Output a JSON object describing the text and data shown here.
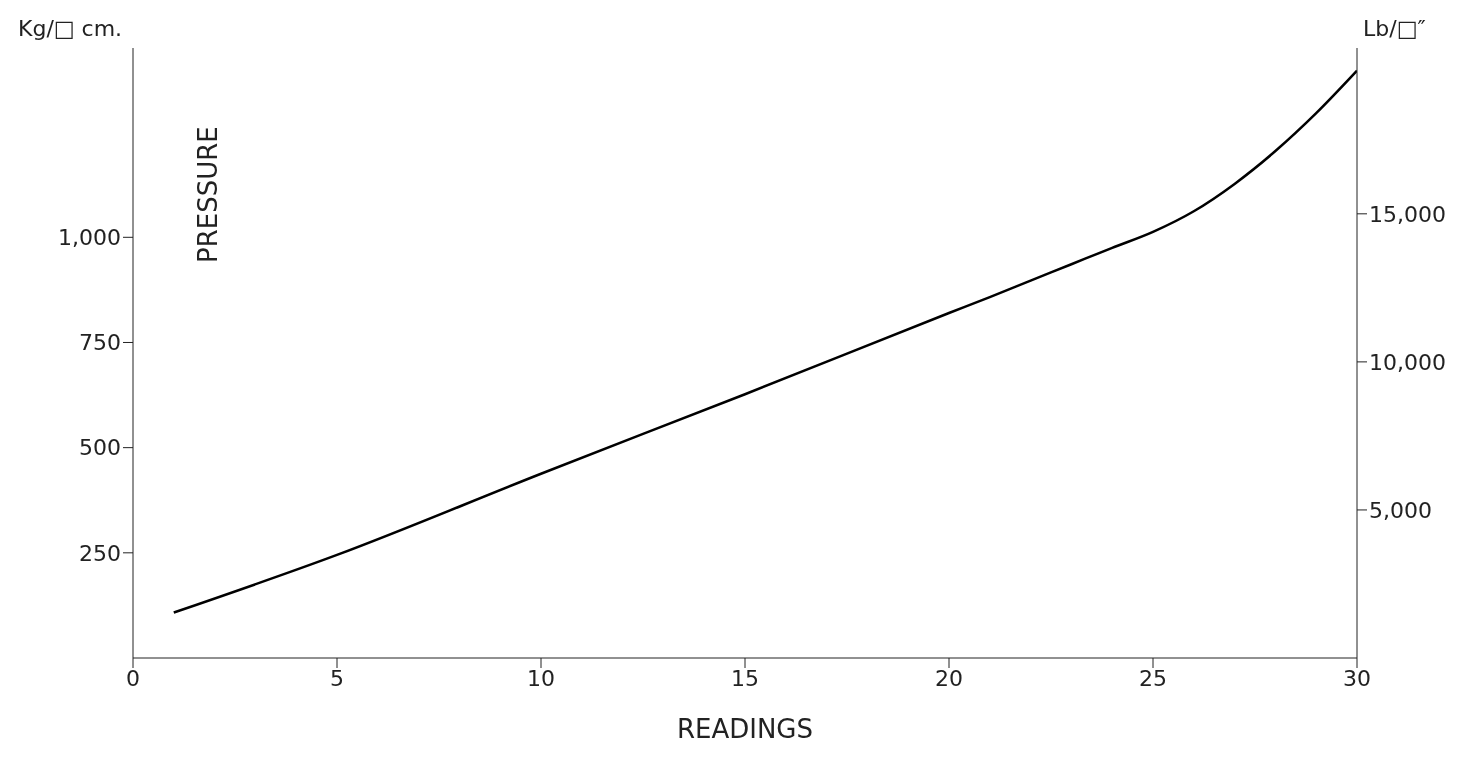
{
  "chart_data": {
    "type": "line",
    "xlabel": "READINGS",
    "ylabel": "Kg/□ cm.",
    "y2label": "Lb/□″",
    "annotations": [
      "PRESSURE"
    ],
    "x": [
      1,
      5,
      10,
      15,
      20,
      21,
      22,
      23,
      24,
      25,
      26,
      27,
      28,
      29,
      30
    ],
    "series": [
      {
        "color": "#000000",
        "values": [
          108,
          245,
          438,
          627,
          820,
          858,
          897,
          936,
          975,
          1013,
          1062,
          1127,
          1205,
          1295,
          1396
        ]
      }
    ],
    "xlim": [
      0,
      30
    ],
    "xticks": [
      0,
      5,
      10,
      15,
      20,
      25,
      30
    ],
    "ylim": [
      0,
      1450
    ],
    "yticks": [
      250,
      500,
      750,
      {
        "value": 1000,
        "label": "1,000"
      }
    ],
    "y2lim": [
      0,
      20600
    ],
    "y2ticks": [
      {
        "value": 5000,
        "label": "5,000"
      },
      {
        "value": 10000,
        "label": "10,000"
      },
      {
        "value": 15000,
        "label": "15,000"
      }
    ],
    "grid": false,
    "legend": false,
    "marker": "none",
    "line_style": "solid"
  }
}
